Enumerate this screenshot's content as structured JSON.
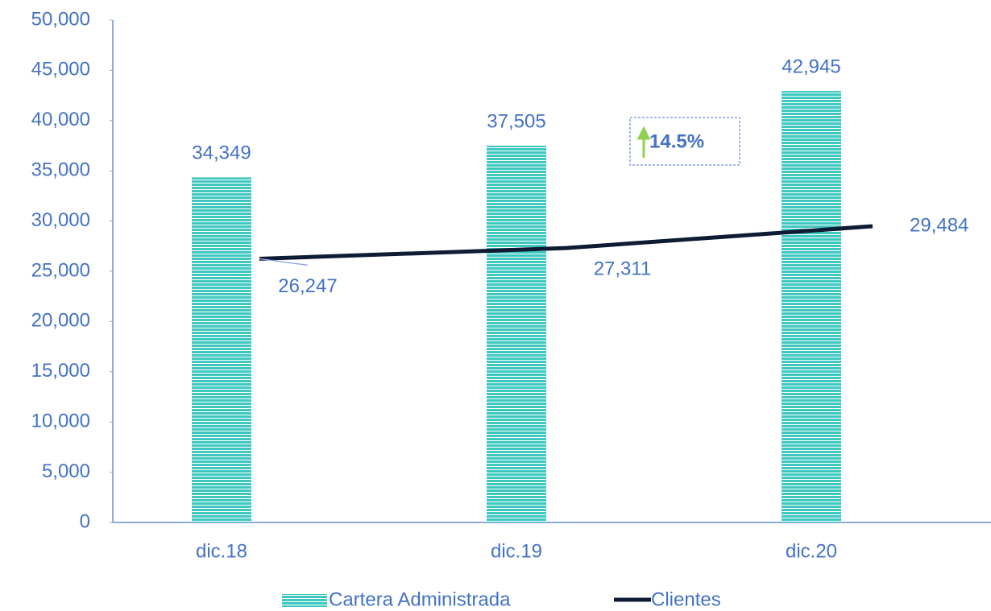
{
  "chart_data": {
    "type": "bar_line",
    "categories": [
      "dic.18",
      "dic.19",
      "dic.20"
    ],
    "series": [
      {
        "name": "Cartera Administrada",
        "type": "bar",
        "color": "#3ec8c0",
        "values": [
          34349,
          37505,
          42945
        ],
        "value_labels": [
          "34,349",
          "37,505",
          "42,945"
        ]
      },
      {
        "name": "Clientes",
        "type": "line",
        "color": "#0d1b33",
        "values": [
          26247,
          27311,
          29484
        ],
        "value_labels": [
          "26,247",
          "27,311",
          "29,484"
        ]
      }
    ],
    "ylim": [
      0,
      50000
    ],
    "yticks": [
      0,
      {
        "value": 5000,
        "label": "5,000"
      },
      {
        "value": 10000,
        "label": "10,000"
      },
      {
        "value": 15000,
        "label": "15,000"
      },
      {
        "value": 20000,
        "label": "20,000"
      },
      {
        "value": 25000,
        "label": "25,000"
      },
      {
        "value": 30000,
        "label": "30,000"
      },
      {
        "value": 35000,
        "label": "35,000"
      },
      {
        "value": 40000,
        "label": "40,000"
      },
      {
        "value": 45000,
        "label": "45,000"
      },
      {
        "value": 50000,
        "label": "50,000"
      }
    ],
    "annotations": [
      "14.5%"
    ],
    "legend": "bottom"
  }
}
